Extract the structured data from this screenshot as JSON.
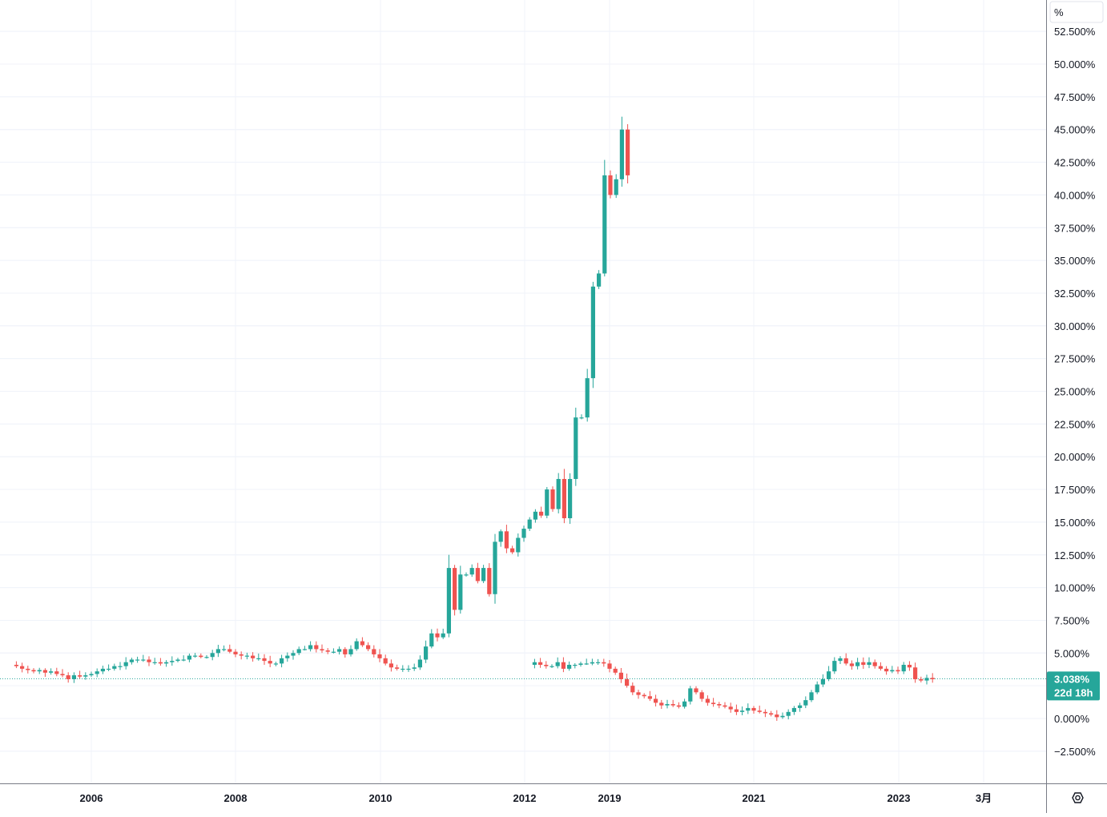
{
  "chart_data": {
    "type": "candlestick",
    "y_unit": "%",
    "ylim": [
      -5.0,
      54.5
    ],
    "y_ticks": [
      "52.500%",
      "50.000%",
      "47.500%",
      "45.000%",
      "42.500%",
      "40.000%",
      "37.500%",
      "35.000%",
      "32.500%",
      "30.000%",
      "27.500%",
      "25.000%",
      "22.500%",
      "20.000%",
      "17.500%",
      "15.000%",
      "12.500%",
      "10.000%",
      "7.500%",
      "5.000%",
      "0.000%",
      "−2.500%"
    ],
    "y_tick_values": [
      52.5,
      50,
      47.5,
      45,
      42.5,
      40,
      37.5,
      35,
      32.5,
      30,
      27.5,
      25,
      22.5,
      20,
      17.5,
      15,
      12.5,
      10,
      7.5,
      5,
      0,
      -2.5
    ],
    "x_ticks": [
      "2006",
      "2008",
      "2010",
      "2012",
      "2019",
      "2021",
      "2023",
      "3月"
    ],
    "current_value": {
      "value": 3.038,
      "label": "3.038%",
      "countdown": "22d 18h"
    },
    "colors": {
      "up": "#26a69a",
      "down": "#ef5350",
      "grid": "#f0f3fa",
      "axis_text": "#131722",
      "badge": "#26a69a",
      "price_line": "#26a69a"
    },
    "segments": [
      {
        "start_tick": 0,
        "candles_before_start_tick": 13,
        "closes": [
          4.0,
          3.8,
          3.7,
          3.6,
          3.7,
          3.5,
          3.6,
          3.4,
          3.3,
          3.0,
          3.3,
          3.2,
          3.3,
          3.4,
          3.6,
          3.8,
          3.8,
          4.0,
          4.0,
          4.3,
          4.5,
          4.5,
          4.5,
          4.3,
          4.3,
          4.2,
          4.3,
          4.4,
          4.5,
          4.5,
          4.8,
          4.8,
          4.7,
          4.7,
          5.0,
          5.3,
          5.3,
          5.1,
          4.9,
          4.8,
          4.8,
          4.6,
          4.6,
          4.4,
          4.2,
          4.2,
          4.6,
          4.8,
          5.0,
          5.3,
          5.3,
          5.6,
          5.3,
          5.2,
          5.1,
          5.1,
          5.3,
          4.9,
          5.3,
          5.9,
          5.6,
          5.3,
          4.9,
          4.6,
          4.2,
          3.9,
          3.8,
          3.8,
          3.8,
          3.9,
          4.5,
          5.5,
          6.5,
          6.2,
          6.5,
          11.5,
          8.3,
          11.0,
          11.0,
          11.5,
          10.5,
          11.5,
          9.5,
          13.5,
          14.3,
          13.0,
          12.7,
          13.8,
          14.5,
          15.2,
          15.8,
          15.5,
          17.5,
          16.0,
          18.3,
          15.3,
          18.3,
          23.0,
          23.0,
          26.0,
          33.0,
          34.0,
          41.5,
          40.0,
          41.2,
          45.0,
          41.5
        ],
        "first_open": 4.1
      },
      {
        "start_tick": 4,
        "candles_before_start_tick": 13,
        "closes": [
          4.3,
          4.1,
          4.0,
          4.0,
          4.3,
          3.8,
          4.1,
          4.1,
          4.2,
          4.2,
          4.3,
          4.3,
          4.2,
          3.8,
          3.5,
          3.0,
          2.5,
          2.0,
          1.8,
          1.7,
          1.5,
          1.2,
          1.0,
          1.1,
          1.0,
          0.9,
          1.3,
          2.3,
          2.0,
          1.5,
          1.2,
          1.1,
          1.0,
          0.9,
          0.7,
          0.5,
          0.6,
          0.8,
          0.6,
          0.5,
          0.4,
          0.3,
          0.1,
          0.2,
          0.5,
          0.8,
          1.0,
          1.4,
          2.0,
          2.6,
          3.0,
          3.6,
          4.4,
          4.6,
          4.2,
          4.0,
          4.3,
          4.1,
          4.3,
          4.0,
          3.8,
          3.6,
          3.7,
          3.6,
          4.1,
          3.9,
          3.0,
          2.9,
          3.1,
          3.0
        ],
        "first_open": 4.1
      }
    ]
  },
  "controls": {
    "settings_icon": "auto-scale-settings-icon"
  }
}
